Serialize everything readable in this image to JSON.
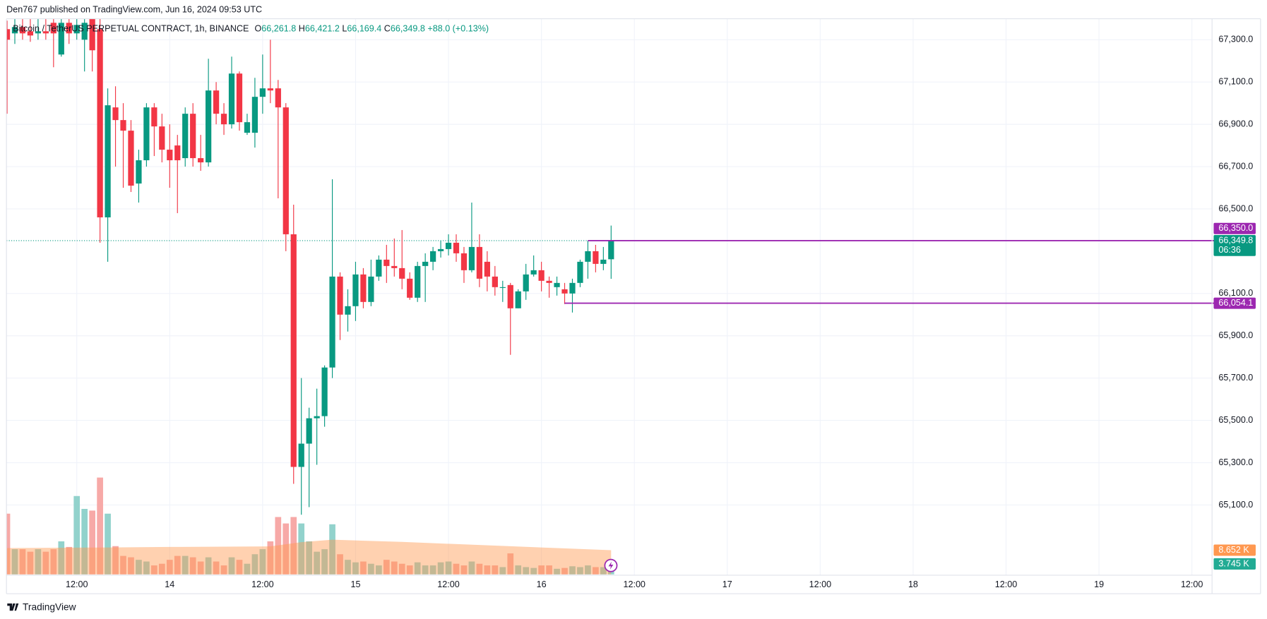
{
  "chart_data": {
    "type": "candlestick",
    "header": "Den767 published on TradingView.com, Jun 16, 2024 09:53 UTC",
    "symbol": "Bitcoin / TetherUS PERPETUAL CONTRACT, 1h, BINANCE",
    "legend": {
      "labels": [
        "O",
        "H",
        "L",
        "C"
      ],
      "values": [
        66261.8,
        66421.2,
        66169.4,
        66349.8
      ],
      "value_labels": [
        "66,261.8",
        "66,421.2",
        "66,169.4",
        "66,349.8"
      ],
      "color": "#089981"
    },
    "change": "+88.0 (+0.13%)",
    "xlim": [
      -21.08,
      134.6
    ],
    "xticks": [
      {
        "value": -12,
        "label": "12:00"
      },
      {
        "value": 0,
        "label": "14"
      },
      {
        "value": 12,
        "label": "12:00"
      },
      {
        "value": 24,
        "label": "15"
      },
      {
        "value": 36,
        "label": "12:00"
      },
      {
        "value": 48,
        "label": "16"
      },
      {
        "value": 60,
        "label": "12:00"
      },
      {
        "value": 72,
        "label": "17"
      },
      {
        "value": 84,
        "label": "12:00"
      },
      {
        "value": 96,
        "label": "18"
      },
      {
        "value": 108,
        "label": "12:00"
      },
      {
        "value": 120,
        "label": "19"
      },
      {
        "value": 132,
        "label": "12:00"
      }
    ],
    "ylim": [
      64768,
      67399
    ],
    "yticks": [
      {
        "value": 65100,
        "label": "65,100.0"
      },
      {
        "value": 65300,
        "label": "65,300.0"
      },
      {
        "value": 65500,
        "label": "65,500.0"
      },
      {
        "value": 65700,
        "label": "65,700.0"
      },
      {
        "value": 65900,
        "label": "65,900.0"
      },
      {
        "value": 66100,
        "label": "66,100.0"
      },
      {
        "value": 66500,
        "label": "66,500.0"
      },
      {
        "value": 66700,
        "label": "66,700.0"
      },
      {
        "value": 66900,
        "label": "66,900.0"
      },
      {
        "value": 67100,
        "label": "67,100.0"
      },
      {
        "value": 67300,
        "label": "67,300.0"
      }
    ],
    "grid": true,
    "up_color": "#089981",
    "down_color": "#f23645",
    "candles": {
      "x": [
        -21,
        -20,
        -19,
        -18,
        -17,
        -16,
        -15,
        -14,
        -13,
        -12,
        -11,
        -10,
        -9,
        -8,
        -7,
        -6,
        -5,
        -4,
        -3,
        -2,
        -1,
        0,
        1,
        2,
        3,
        4,
        5,
        6,
        7,
        8,
        9,
        10,
        11,
        12,
        13,
        14,
        15,
        16,
        17,
        18,
        19,
        20,
        21,
        22,
        23,
        24,
        25,
        26,
        27,
        28,
        29,
        30,
        31,
        32,
        33,
        34,
        35,
        36,
        37,
        38,
        39,
        40,
        41,
        42,
        43,
        44,
        45,
        46,
        47,
        48,
        49,
        50,
        51,
        52,
        53,
        54,
        55,
        56,
        57
      ],
      "open": [
        67350,
        67330,
        67360,
        67340,
        67330,
        67340,
        67380,
        67230,
        67380,
        67330,
        67300,
        67400,
        67350,
        66460,
        66980,
        66920,
        66870,
        66620,
        66730,
        66980,
        66890,
        66780,
        66800,
        66740,
        66950,
        66740,
        66720,
        67060,
        66950,
        66900,
        67140,
        66860,
        66860,
        67030,
        67070,
        67070,
        66980,
        66380,
        65280,
        65390,
        65510,
        65520,
        65750,
        66180,
        66000,
        66040,
        66190,
        66060,
        66180,
        66260,
        66230,
        66220,
        66170,
        66080,
        66230,
        66250,
        66300,
        66310,
        66340,
        66290,
        66210,
        66320,
        66250,
        66180,
        66130,
        66140,
        66030,
        66110,
        66190,
        66210,
        66160,
        66130,
        66120,
        66100,
        66150,
        66250,
        66300,
        66240,
        66261.8
      ],
      "high": [
        67390,
        67400,
        67400,
        67400,
        67400,
        67400,
        67400,
        67400,
        67400,
        67400,
        67400,
        67420,
        67400,
        67070,
        67080,
        67000,
        66920,
        66780,
        67000,
        67000,
        66950,
        66900,
        66850,
        66980,
        67000,
        66850,
        67210,
        67100,
        67000,
        67220,
        67150,
        66950,
        67120,
        67230,
        67300,
        67110,
        67000,
        66520,
        65700,
        65560,
        65650,
        65760,
        66640,
        66200,
        66120,
        66250,
        66220,
        66260,
        66280,
        66330,
        66360,
        66400,
        66200,
        66250,
        66290,
        66320,
        66350,
        66380,
        66380,
        66320,
        66530,
        66380,
        66300,
        66230,
        66160,
        66150,
        66120,
        66240,
        66280,
        66250,
        66180,
        66180,
        66150,
        66170,
        66260,
        66350,
        66330,
        66320,
        66421.2
      ],
      "low": [
        66950,
        67280,
        67300,
        67290,
        67300,
        67300,
        67170,
        67220,
        67280,
        67300,
        67150,
        67150,
        66340,
        66250,
        66700,
        66600,
        66580,
        66530,
        66700,
        66750,
        66720,
        66600,
        66480,
        66700,
        66700,
        66680,
        66700,
        66900,
        66850,
        66880,
        66870,
        66850,
        66790,
        66950,
        67000,
        66550,
        66300,
        65200,
        65054,
        65090,
        65290,
        65470,
        65700,
        65880,
        65920,
        65970,
        66030,
        66040,
        66160,
        66150,
        66180,
        66120,
        66070,
        66060,
        66060,
        66210,
        66270,
        66280,
        66250,
        66150,
        66200,
        66130,
        66110,
        66090,
        66060,
        65810,
        66030,
        66070,
        66180,
        66110,
        66080,
        66090,
        66050,
        66010,
        66130,
        66170,
        66200,
        66210,
        66169.4
      ],
      "close": [
        67300,
        67360,
        67330,
        67320,
        67340,
        67330,
        67330,
        67380,
        67330,
        67370,
        67380,
        67250,
        66460,
        66990,
        66920,
        66870,
        66610,
        66730,
        66980,
        66890,
        66780,
        66730,
        66730,
        66950,
        66740,
        66720,
        67060,
        66950,
        66900,
        67140,
        66910,
        66910,
        67030,
        67070,
        67060,
        66980,
        66380,
        65280,
        65390,
        65510,
        65520,
        65750,
        66180,
        66000,
        66040,
        66190,
        66060,
        66180,
        66260,
        66230,
        66220,
        66170,
        66080,
        66230,
        66250,
        66300,
        66310,
        66340,
        66290,
        66210,
        66320,
        66170,
        66180,
        66130,
        66130,
        66030,
        66110,
        66190,
        66210,
        66160,
        66150,
        66150,
        66100,
        66150,
        66250,
        66300,
        66240,
        66260,
        66349.8
      ]
    },
    "volume": {
      "ylim": [
        0,
        40
      ],
      "up_color": "#92d2cc",
      "down_color": "#f7a9a7",
      "values": [
        21.7,
        9.0,
        9.0,
        8.1,
        9.0,
        8.1,
        9.0,
        11.8,
        9.8,
        28.0,
        23.4,
        22.8,
        34.6,
        21.7,
        10.1,
        6.6,
        6.1,
        5.2,
        4.6,
        3.2,
        3.8,
        5.2,
        6.6,
        6.6,
        6.1,
        4.6,
        6.1,
        4.6,
        3.2,
        6.1,
        5.2,
        3.8,
        7.2,
        9.0,
        11.8,
        20.5,
        18.2,
        20.5,
        18.2,
        11.8,
        8.1,
        9.0,
        17.9,
        7.2,
        5.2,
        4.3,
        4.6,
        3.8,
        3.2,
        5.2,
        4.6,
        3.8,
        3.2,
        4.3,
        3.2,
        3.2,
        4.3,
        4.6,
        3.8,
        3.2,
        4.6,
        3.8,
        3.2,
        3.2,
        2.6,
        7.5,
        3.2,
        2.6,
        2.3,
        3.2,
        3.2,
        2.0,
        2.3,
        2.9,
        2.6,
        3.2,
        2.6,
        2.6,
        3.745
      ]
    },
    "volume_ma": {
      "x": [
        -21,
        -9,
        0,
        13,
        17,
        21,
        30,
        40,
        50,
        57
      ],
      "values": [
        9.4,
        9.6,
        9.8,
        10.0,
        11.5,
        12.4,
        11.6,
        10.5,
        9.4,
        8.652
      ],
      "color": "#ff9850"
    },
    "price_lines": [
      {
        "value": 66350,
        "label": "66,350.0",
        "x_start": 54,
        "color": "#9c27b0"
      },
      {
        "value": 66054.1,
        "label": "66,054.1",
        "x_start": 51,
        "color": "#9c27b0"
      }
    ],
    "last_price": {
      "value": 66349.8,
      "label": "66,349.8",
      "countdown": "06:36",
      "color": "#089981"
    },
    "volume_labels": [
      {
        "value": 8.652,
        "label": "8.652 K",
        "color": "#ff9850"
      },
      {
        "value": 3.745,
        "label": "3.745 K",
        "color": "#22ab94"
      }
    ],
    "footer": "TradingView"
  }
}
